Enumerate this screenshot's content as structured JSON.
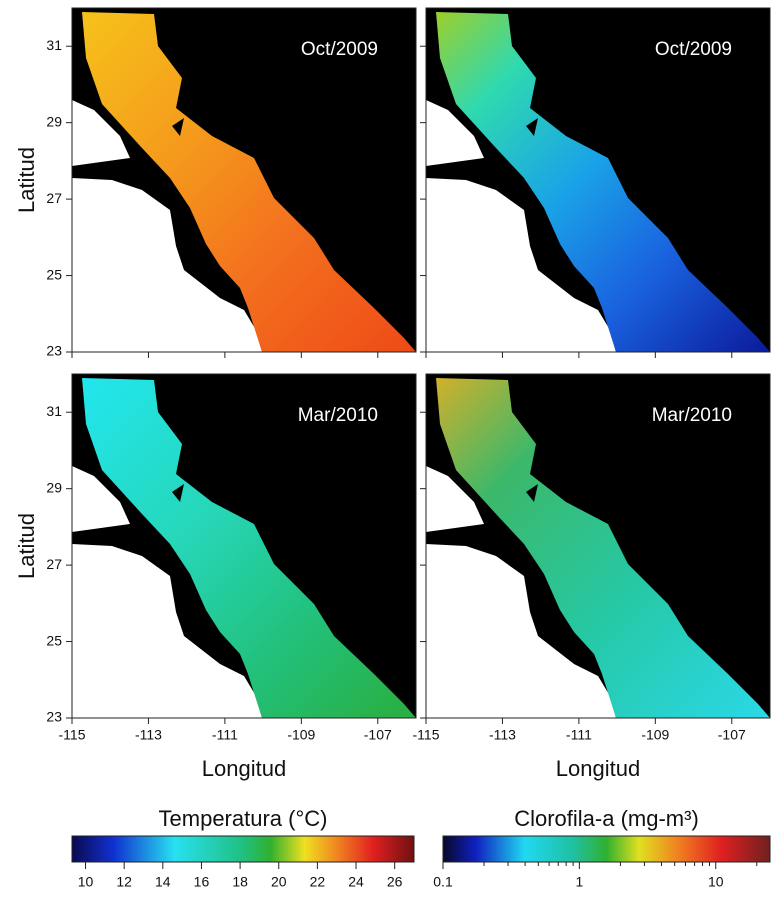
{
  "panels": [
    {
      "label": "Oct/2009"
    },
    {
      "label": "Oct/2009"
    },
    {
      "label": "Mar/2010"
    },
    {
      "label": "Mar/2010"
    }
  ],
  "y_axis": {
    "title": "Latitud",
    "ylim": [
      23,
      32
    ],
    "ticks": [
      31,
      29,
      27,
      25,
      23
    ]
  },
  "x_axis": {
    "title": "Longitud",
    "xlim": [
      -115,
      -106
    ],
    "ticks": [
      -115,
      -113,
      -111,
      -109,
      -107
    ]
  },
  "colorbars": [
    {
      "title": "Temperatura (°C)",
      "lim": [
        9.3,
        27
      ],
      "log": false,
      "ticks": [
        10,
        12,
        14,
        16,
        18,
        20,
        22,
        24,
        26
      ]
    },
    {
      "title": "Clorofila-a (mg-m³)",
      "lim": [
        0.1,
        25
      ],
      "log": true,
      "ticks": [
        0.1,
        1,
        10
      ]
    }
  ]
}
